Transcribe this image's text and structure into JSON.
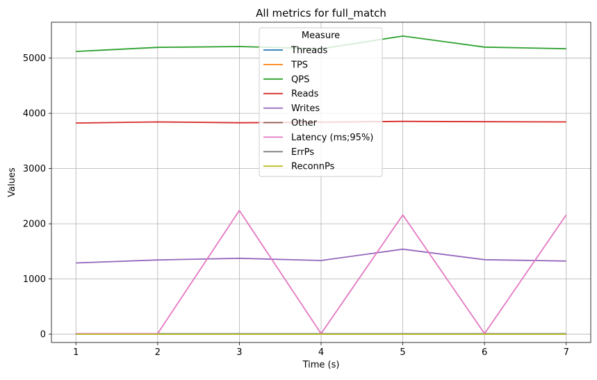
{
  "chart_data": {
    "type": "line",
    "title": "All metrics for full_match",
    "xlabel": "Time (s)",
    "ylabel": "Values",
    "x": [
      1,
      2,
      3,
      4,
      5,
      6,
      7
    ],
    "xlim": [
      0.7,
      7.3
    ],
    "ylim": [
      -150,
      5650
    ],
    "xticks": [
      1,
      2,
      3,
      4,
      5,
      6,
      7
    ],
    "yticks": [
      0,
      1000,
      2000,
      3000,
      4000,
      5000
    ],
    "grid": true,
    "legend": {
      "title": "Measure",
      "placement": "top-center"
    },
    "series": [
      {
        "name": "Threads",
        "color": "#1f77b4",
        "values": [
          8,
          8,
          8,
          8,
          8,
          8,
          8
        ]
      },
      {
        "name": "TPS",
        "color": "#ff7f0e",
        "values": [
          4,
          4,
          4,
          4,
          4,
          4,
          4
        ]
      },
      {
        "name": "QPS",
        "color": "#2ca02c",
        "values": [
          5120,
          5195,
          5210,
          5170,
          5400,
          5200,
          5170
        ]
      },
      {
        "name": "Reads",
        "color": "#d62728",
        "values": [
          3825,
          3845,
          3830,
          3840,
          3855,
          3848,
          3845
        ]
      },
      {
        "name": "Writes",
        "color": "#9467bd",
        "values": [
          1290,
          1345,
          1375,
          1335,
          1540,
          1350,
          1325
        ]
      },
      {
        "name": "Other",
        "color": "#8c564b",
        "values": [
          0,
          0,
          0,
          0,
          0,
          0,
          0
        ]
      },
      {
        "name": "Latency (ms;95%)",
        "color": "#e377c2",
        "values": [
          10,
          10,
          2240,
          10,
          2160,
          10,
          2160
        ]
      },
      {
        "name": "ErrPs",
        "color": "#7f7f7f",
        "values": [
          0,
          0,
          0,
          0,
          0,
          0,
          0
        ]
      },
      {
        "name": "ReconnPs",
        "color": "#bcbd22",
        "values": [
          0,
          0,
          0,
          0,
          0,
          0,
          0
        ]
      }
    ]
  }
}
